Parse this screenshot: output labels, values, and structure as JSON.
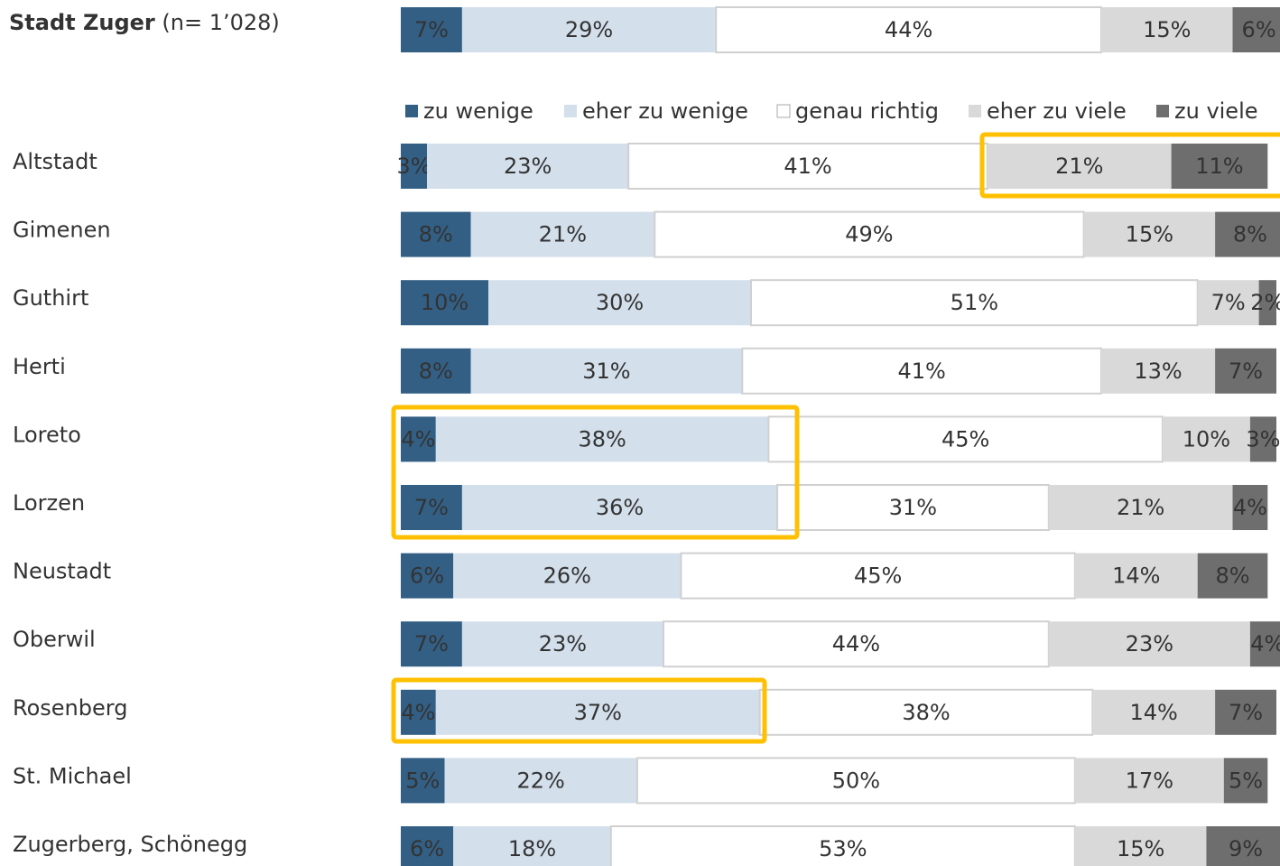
{
  "chart_data": [
    {
      "type": "bar",
      "orientation": "horizontal",
      "stacked": true,
      "categories": [
        "Stadt Zuger"
      ],
      "note": "(n= 1’028)",
      "xlim": [
        0,
        100
      ],
      "series": [
        {
          "color": "#335f85",
          "values": [
            7
          ],
          "value_labels": [
            "7%"
          ]
        },
        {
          "color": "#d3dfeb",
          "values": [
            29
          ],
          "value_labels": [
            "29%"
          ]
        },
        {
          "color": "#ffffff",
          "values": [
            44
          ],
          "value_labels": [
            "44%"
          ]
        },
        {
          "color": "#d9d9d9",
          "values": [
            15
          ],
          "value_labels": [
            "15%"
          ]
        },
        {
          "color": "#6e6e6e",
          "values": [
            6
          ],
          "value_labels": [
            "6%"
          ]
        }
      ]
    },
    {
      "type": "bar",
      "orientation": "horizontal",
      "stacked": true,
      "categories": [
        "Altstadt",
        "Gimenen",
        "Guthirt",
        "Herti",
        "Loreto",
        "Lorzen",
        "Neustadt",
        "Oberwil",
        "Rosenberg",
        "St. Michael",
        "Zugerberg, Schönegg"
      ],
      "xlim": [
        0,
        100
      ],
      "legend": "top",
      "series": [
        {
          "name": "zu wenige",
          "color": "#335f85",
          "values": [
            3,
            8,
            10,
            8,
            4,
            7,
            6,
            7,
            4,
            5,
            6
          ],
          "value_labels": [
            "3%",
            "8%",
            "10%",
            "8%",
            "4%",
            "7%",
            "6%",
            "7%",
            "4%",
            "5%",
            "6%"
          ]
        },
        {
          "name": "eher zu wenige",
          "color": "#d3dfeb",
          "values": [
            23,
            21,
            30,
            31,
            38,
            36,
            26,
            23,
            37,
            22,
            18
          ],
          "value_labels": [
            "23%",
            "21%",
            "30%",
            "31%",
            "38%",
            "36%",
            "26%",
            "23%",
            "37%",
            "22%",
            "18%"
          ]
        },
        {
          "name": "genau richtig",
          "color": "#ffffff",
          "values": [
            41,
            49,
            51,
            41,
            45,
            31,
            45,
            44,
            38,
            50,
            53
          ],
          "value_labels": [
            "41%",
            "49%",
            "51%",
            "41%",
            "45%",
            "31%",
            "45%",
            "44%",
            "38%",
            "50%",
            "53%"
          ]
        },
        {
          "name": "eher zu viele",
          "color": "#d9d9d9",
          "values": [
            21,
            15,
            7,
            13,
            10,
            21,
            14,
            23,
            14,
            17,
            15
          ],
          "value_labels": [
            "21%",
            "15%",
            "7%",
            "13%",
            "10%",
            "21%",
            "14%",
            "23%",
            "14%",
            "17%",
            "15%"
          ]
        },
        {
          "name": "zu viele",
          "color": "#6e6e6e",
          "values": [
            11,
            8,
            2,
            7,
            3,
            4,
            8,
            4,
            7,
            5,
            9
          ],
          "value_labels": [
            "11%",
            "8%",
            "2%",
            "7%",
            "3%",
            "4%",
            "8%",
            "4%",
            "7%",
            "5%",
            "9%"
          ]
        }
      ]
    }
  ]
}
